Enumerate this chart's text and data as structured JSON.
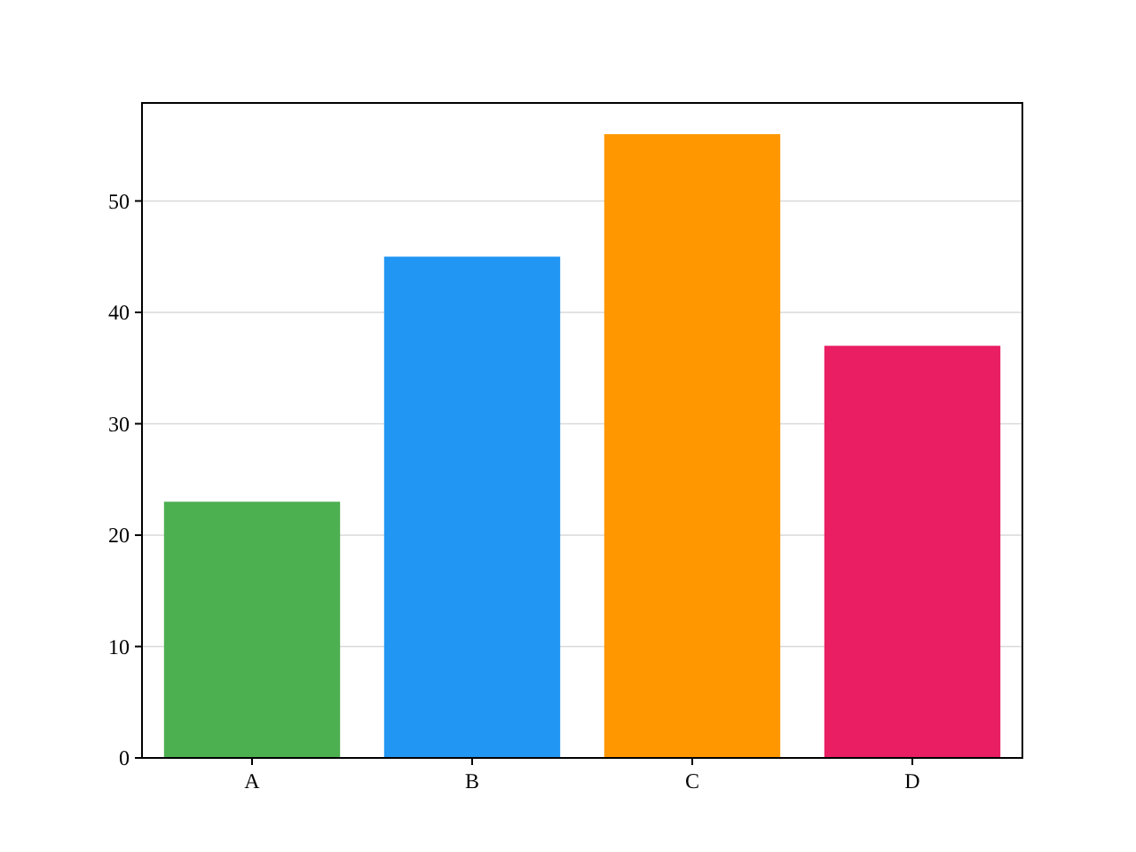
{
  "chart_data": {
    "type": "bar",
    "categories": [
      "A",
      "B",
      "C",
      "D"
    ],
    "values": [
      23,
      45,
      56,
      37
    ],
    "colors": [
      "#4caf50",
      "#2196f3",
      "#ff9800",
      "#e91e63"
    ],
    "ylim": [
      0,
      58.8
    ],
    "yticks": [
      0,
      10,
      20,
      30,
      40,
      50
    ],
    "grid": "y"
  }
}
